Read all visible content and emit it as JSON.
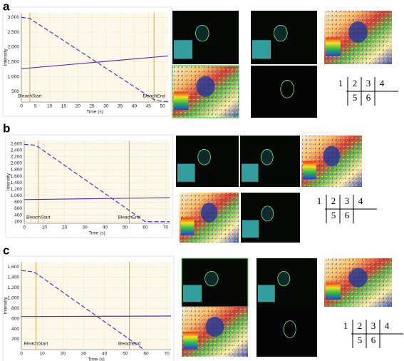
{
  "panels": [
    {
      "label": "a",
      "grid": [
        "1",
        "2",
        "3",
        "4",
        "5",
        "6"
      ]
    },
    {
      "label": "b",
      "grid": [
        "1",
        "2",
        "3",
        "4",
        "5",
        "6"
      ]
    },
    {
      "label": "c",
      "grid": [
        "1",
        "2",
        "3",
        "4",
        "5",
        "6"
      ]
    }
  ],
  "chart_data": [
    {
      "type": "line",
      "x_label": "Time (s)",
      "y_label": "Intensity",
      "xlim": [
        0,
        52
      ],
      "xticks": [
        0,
        5,
        10,
        15,
        20,
        25,
        30,
        35,
        40,
        45,
        50
      ],
      "ylim": [
        150,
        3150
      ],
      "yticks": [
        500,
        {
          "value": 1000,
          "label": "1,000"
        },
        {
          "value": 1500,
          "label": "1,500"
        },
        {
          "value": 2000,
          "label": "2,000"
        },
        {
          "value": 2500,
          "label": "2,500"
        },
        {
          "value": 3000,
          "label": "3,000"
        }
      ],
      "grid": true,
      "markers": [
        {
          "label": "BleachStart",
          "x": 3
        },
        {
          "label": "BleachEnd",
          "x": 47
        }
      ],
      "series": [
        {
          "color": "#5a2fc8",
          "dash": true,
          "x": [
            0,
            3,
            47,
            50,
            52
          ],
          "values": [
            3000,
            2960,
            230,
            170,
            170
          ]
        },
        {
          "color": "#5a2fc8",
          "dash": false,
          "x": [
            0,
            52
          ],
          "values": [
            1270,
            1700
          ]
        }
      ]
    },
    {
      "type": "line",
      "x_label": "Time (s)",
      "y_label": "Intensity",
      "xlim": [
        0,
        72
      ],
      "xticks": [
        0,
        10,
        20,
        30,
        40,
        50,
        60,
        70
      ],
      "ylim": [
        150,
        2700
      ],
      "yticks": [
        200,
        400,
        600,
        800,
        {
          "value": 1000,
          "label": "1,000"
        },
        {
          "value": 1200,
          "label": "1,200"
        },
        {
          "value": 1400,
          "label": "1,400"
        },
        {
          "value": 1600,
          "label": "1,600"
        },
        {
          "value": 1800,
          "label": "1,800"
        },
        {
          "value": 2000,
          "label": "2,000"
        },
        {
          "value": 2200,
          "label": "2,200"
        },
        {
          "value": 2400,
          "label": "2,400"
        },
        {
          "value": 2600,
          "label": "2,600"
        }
      ],
      "grid": true,
      "markers": [
        {
          "label": "BleachStart",
          "x": 7
        },
        {
          "label": "BleachEnd",
          "x": 52
        }
      ],
      "series": [
        {
          "color": "#5a2fc8",
          "dash": true,
          "x": [
            0,
            5,
            7,
            60,
            72
          ],
          "values": [
            2580,
            2560,
            2500,
            200,
            200
          ]
        },
        {
          "color": "#5a2fc8",
          "dash": false,
          "x": [
            0,
            72
          ],
          "values": [
            880,
            940
          ]
        }
      ]
    },
    {
      "type": "line",
      "x_label": "Time (s)",
      "y_label": "Intensity",
      "xlim": [
        0,
        72
      ],
      "xticks": [
        0,
        10,
        20,
        30,
        40,
        50,
        60,
        70
      ],
      "ylim": [
        0,
        1700
      ],
      "yticks": [
        200,
        400,
        600,
        800,
        {
          "value": 1000,
          "label": "1,000"
        },
        {
          "value": 1200,
          "label": "1,200"
        },
        {
          "value": 1400,
          "label": "1,400"
        },
        {
          "value": 1600,
          "label": "1,600"
        }
      ],
      "grid": true,
      "markers": [
        {
          "label": "BleachStart",
          "x": 7
        },
        {
          "label": "BleachEnd",
          "x": 52
        }
      ],
      "series": [
        {
          "color": "#5a2fc8",
          "dash": true,
          "x": [
            0,
            5,
            7,
            59
          ],
          "values": [
            1530,
            1510,
            1480,
            0
          ]
        },
        {
          "color": "#5a2fc8",
          "dash": false,
          "x": [
            0,
            72
          ],
          "values": [
            640,
            650
          ]
        }
      ]
    }
  ]
}
